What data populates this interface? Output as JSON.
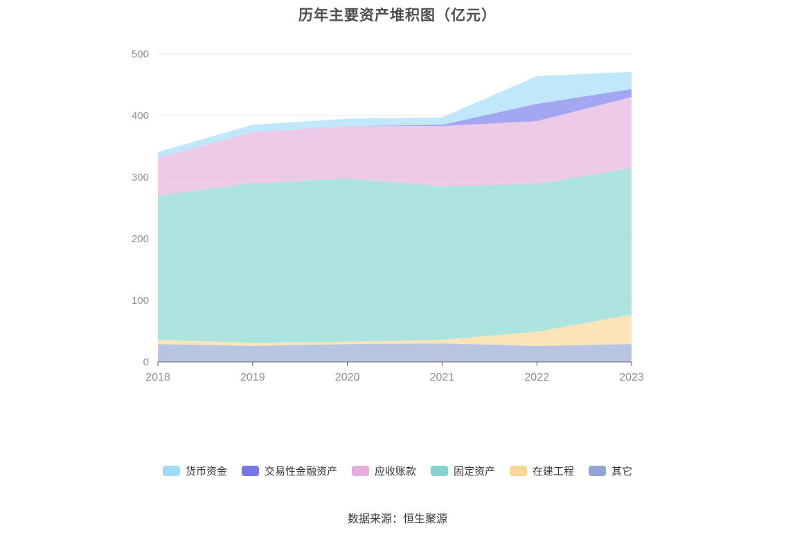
{
  "title": "历年主要资产堆积图（亿元）",
  "source": "数据来源：恒生聚源",
  "style": {
    "area_opacity": 0.65,
    "grid_color": "#e8eaf2",
    "axis_color": "#606060",
    "tick_label_color": "#8f8f8f",
    "legend_text_color": "#333333",
    "title_color": "#4d4d4d"
  },
  "chart_data": {
    "type": "area",
    "stacked": true,
    "title": "历年主要资产堆积图（亿元）",
    "unit": "亿元",
    "x": [
      "2018",
      "2019",
      "2020",
      "2021",
      "2022",
      "2023"
    ],
    "ylim": [
      0,
      500
    ],
    "yticks": [
      "0",
      "100",
      "200",
      "300",
      "400",
      "500"
    ],
    "grid": true,
    "legend_position": "bottom",
    "series_order": "bottom-to-top",
    "series": [
      {
        "id": "others",
        "name": "其它",
        "color": "#91a6d4",
        "values": [
          29,
          26,
          29,
          30,
          26,
          29
        ]
      },
      {
        "id": "construction-in-progress",
        "name": "在建工程",
        "color": "#fbd694",
        "values": [
          7,
          5,
          4,
          6,
          23,
          48
        ]
      },
      {
        "id": "fixed-assets",
        "name": "固定资产",
        "color": "#82d5ce",
        "values": [
          234,
          259,
          265,
          249,
          240,
          238
        ]
      },
      {
        "id": "accounts-receivable",
        "name": "应收账款",
        "color": "#e5addd",
        "values": [
          61,
          83,
          85,
          98,
          102,
          115
        ]
      },
      {
        "id": "trading-financial-assets",
        "name": "交易性金融资产",
        "color": "#7577e9",
        "values": [
          0,
          0,
          0,
          2,
          28,
          13
        ]
      },
      {
        "id": "monetary-funds",
        "name": "货币资金",
        "color": "#a0dbf7",
        "values": [
          10,
          12,
          12,
          12,
          45,
          28
        ]
      }
    ],
    "legend": [
      "货币资金",
      "交易性金融资产",
      "应收账款",
      "固定资产",
      "在建工程",
      "其它"
    ]
  }
}
